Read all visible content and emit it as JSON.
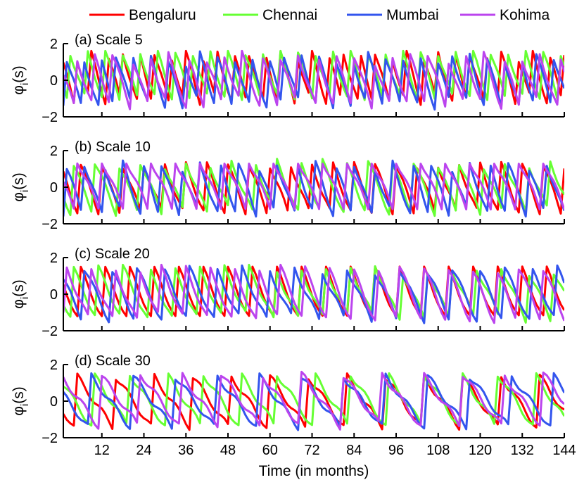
{
  "chart_data": {
    "type": "line",
    "xlabel": "Time (in months)",
    "ylabel": "φ",
    "ylabel_sub": "i",
    "ylabel_suffix": "(s)",
    "xlim": [
      1,
      144
    ],
    "xticks": [
      12,
      24,
      36,
      48,
      60,
      72,
      84,
      96,
      108,
      120,
      132,
      144
    ],
    "ylim": [
      -2,
      2
    ],
    "yticks": [
      -2,
      0,
      2
    ],
    "legend": [
      {
        "name": "Bengaluru",
        "color": "#ff0000"
      },
      {
        "name": "Chennai",
        "color": "#66ff33"
      },
      {
        "name": "Mumbai",
        "color": "#3355ee"
      },
      {
        "name": "Kohima",
        "color": "#bb44ee"
      }
    ],
    "panels": [
      {
        "title": "(a) Scale 5",
        "scale": 5,
        "periods": [
          4.5,
          5.0,
          4.8,
          5.3
        ],
        "phases": [
          0.0,
          0.4,
          0.7,
          0.2
        ],
        "amp": 1.5
      },
      {
        "title": "(b) Scale 10",
        "scale": 10,
        "periods": [
          6.0,
          6.5,
          5.5,
          7.0
        ],
        "phases": [
          0.1,
          0.5,
          0.8,
          0.3
        ],
        "amp": 1.5
      },
      {
        "title": "(c) Scale 20",
        "scale": 20,
        "periods": [
          7.0,
          7.2,
          7.5,
          6.8
        ],
        "phases": [
          0.2,
          0.5,
          0.1,
          0.75
        ],
        "amp": 1.5
      },
      {
        "title": "(d) Scale 30",
        "scale": 30,
        "periods": [
          11.0,
          10.5,
          12.0,
          11.5
        ],
        "phases": [
          0.6,
          0.1,
          0.3,
          0.0
        ],
        "amp": 1.5
      }
    ]
  }
}
